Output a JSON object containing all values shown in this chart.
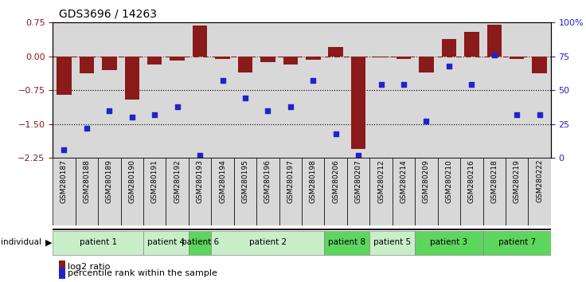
{
  "title": "GDS3696 / 14263",
  "samples": [
    "GSM280187",
    "GSM280188",
    "GSM280189",
    "GSM280190",
    "GSM280191",
    "GSM280192",
    "GSM280193",
    "GSM280194",
    "GSM280195",
    "GSM280196",
    "GSM280197",
    "GSM280198",
    "GSM280206",
    "GSM280207",
    "GSM280212",
    "GSM280214",
    "GSM280209",
    "GSM280210",
    "GSM280216",
    "GSM280218",
    "GSM280219",
    "GSM280222"
  ],
  "log2_ratio": [
    -0.85,
    -0.38,
    -0.3,
    -0.95,
    -0.18,
    -0.1,
    0.68,
    -0.05,
    -0.35,
    -0.12,
    -0.18,
    -0.08,
    0.2,
    -2.05,
    -0.03,
    -0.05,
    -0.35,
    0.38,
    0.55,
    0.7,
    -0.05,
    -0.38
  ],
  "percentile": [
    6,
    22,
    35,
    30,
    32,
    38,
    2,
    57,
    44,
    35,
    38,
    57,
    18,
    2,
    54,
    54,
    27,
    68,
    54,
    76,
    32,
    32
  ],
  "patients": [
    {
      "label": "patient 1",
      "start": 0,
      "end": 4,
      "color": "#c8efc8"
    },
    {
      "label": "patient 4",
      "start": 4,
      "end": 6,
      "color": "#c8efc8"
    },
    {
      "label": "patient 6",
      "start": 6,
      "end": 7,
      "color": "#5dd65d"
    },
    {
      "label": "patient 2",
      "start": 7,
      "end": 12,
      "color": "#c8efc8"
    },
    {
      "label": "patient 8",
      "start": 12,
      "end": 14,
      "color": "#5dd65d"
    },
    {
      "label": "patient 5",
      "start": 14,
      "end": 16,
      "color": "#c8efc8"
    },
    {
      "label": "patient 3",
      "start": 16,
      "end": 19,
      "color": "#5dd65d"
    },
    {
      "label": "patient 7",
      "start": 19,
      "end": 22,
      "color": "#5dd65d"
    }
  ],
  "ylim_left": [
    -2.25,
    0.75
  ],
  "yticks_left": [
    0.75,
    0,
    -0.75,
    -1.5,
    -2.25
  ],
  "yticks_right": [
    0,
    25,
    50,
    75,
    100
  ],
  "bar_color": "#8B1A1A",
  "dot_color": "#2222CC",
  "col_bg_color": "#d8d8d8",
  "legend_bar_label": "log2 ratio",
  "legend_dot_label": "percentile rank within the sample"
}
